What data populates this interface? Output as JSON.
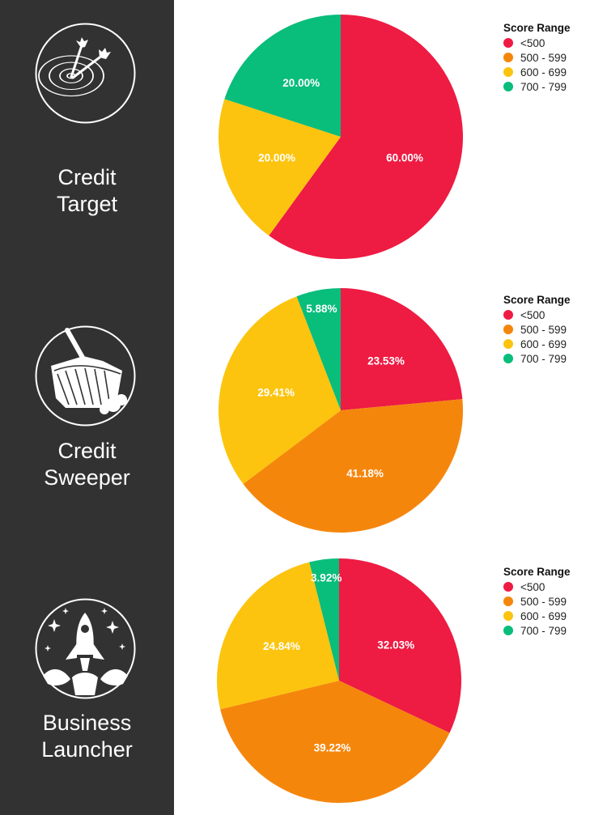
{
  "sidebar": {
    "products": [
      {
        "line1": "Credit",
        "line2": "Target",
        "icon": "target-darts-icon"
      },
      {
        "line1": "Credit",
        "line2": "Sweeper",
        "icon": "broom-icon"
      },
      {
        "line1": "Business",
        "line2": "Launcher",
        "icon": "rocket-icon"
      }
    ]
  },
  "colors": {
    "sidebar_bg": "#323232",
    "red": "#ee1b43",
    "orange": "#f5860c",
    "yellow": "#fcc40e",
    "green": "#09bd7b"
  },
  "chart_data": [
    {
      "type": "pie",
      "title": "Credit Target",
      "legend_title": "Score Range",
      "legend_position": "top-right",
      "categories": [
        "<500",
        "500 - 599",
        "600 - 699",
        "700 - 799"
      ],
      "values": [
        60.0,
        0.0,
        20.0,
        20.0
      ],
      "labels": [
        "60.00%",
        "",
        "20.00%",
        "20.00%"
      ],
      "colors": [
        "#ee1b43",
        "#f5860c",
        "#fcc40e",
        "#09bd7b"
      ]
    },
    {
      "type": "pie",
      "title": "Credit Sweeper",
      "legend_title": "Score Range",
      "legend_position": "top-right",
      "categories": [
        "<500",
        "500 - 599",
        "600 - 699",
        "700 - 799"
      ],
      "values": [
        23.53,
        41.18,
        29.41,
        5.88
      ],
      "labels": [
        "23.53%",
        "41.18%",
        "29.41%",
        "5.88%"
      ],
      "colors": [
        "#ee1b43",
        "#f5860c",
        "#fcc40e",
        "#09bd7b"
      ]
    },
    {
      "type": "pie",
      "title": "Business Launcher",
      "legend_title": "Score Range",
      "legend_position": "top-right",
      "categories": [
        "<500",
        "500 - 599",
        "600 - 699",
        "700 - 799"
      ],
      "values": [
        32.03,
        39.22,
        24.84,
        3.92
      ],
      "labels": [
        "32.03%",
        "39.22%",
        "24.84%",
        "3.92%"
      ],
      "colors": [
        "#ee1b43",
        "#f5860c",
        "#fcc40e",
        "#09bd7b"
      ]
    }
  ]
}
